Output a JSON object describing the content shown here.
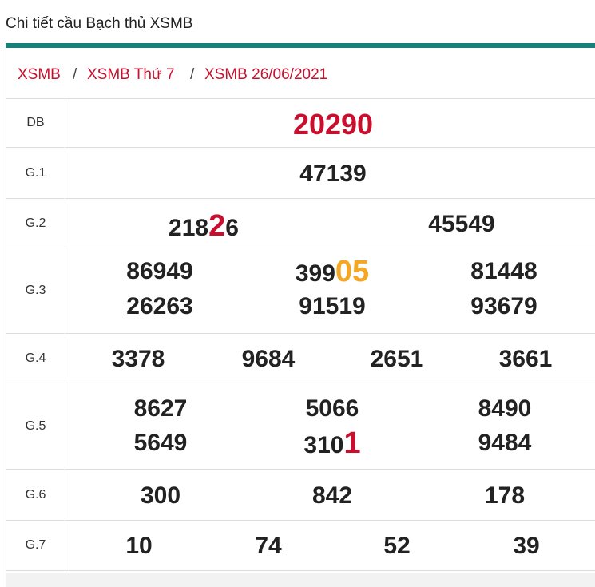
{
  "header": {
    "title": "Chi tiết cầu Bạch thủ XSMB"
  },
  "breadcrumb": {
    "items": [
      "XSMB",
      "XSMB Thứ 7",
      "XSMB 26/06/2021"
    ],
    "separator": "/"
  },
  "colors": {
    "accent_teal": "#1a7f7a",
    "highlight_red": "#c8102e",
    "highlight_orange": "#f5a623"
  },
  "results": {
    "db": {
      "label": "DB",
      "value": "20290"
    },
    "g1": {
      "label": "G.1",
      "value": "47139"
    },
    "g2": {
      "label": "G.2",
      "values": [
        {
          "prefix": "2182",
          "pre": "218",
          "hl": "2",
          "post": "6",
          "highlight": "red"
        },
        {
          "pre": "45549",
          "hl": "",
          "post": ""
        }
      ]
    },
    "g3": {
      "label": "G.3",
      "values": [
        {
          "pre": "86949",
          "hl": "",
          "post": ""
        },
        {
          "pre": "399",
          "hl": "05",
          "post": "",
          "highlight": "orange"
        },
        {
          "pre": "81448",
          "hl": "",
          "post": ""
        },
        {
          "pre": "26263",
          "hl": "",
          "post": ""
        },
        {
          "pre": "91519",
          "hl": "",
          "post": ""
        },
        {
          "pre": "93679",
          "hl": "",
          "post": ""
        }
      ]
    },
    "g4": {
      "label": "G.4",
      "values": [
        "3378",
        "9684",
        "2651",
        "3661"
      ]
    },
    "g5": {
      "label": "G.5",
      "values": [
        {
          "pre": "8627",
          "hl": "",
          "post": ""
        },
        {
          "pre": "5066",
          "hl": "",
          "post": ""
        },
        {
          "pre": "8490",
          "hl": "",
          "post": ""
        },
        {
          "pre": "5649",
          "hl": "",
          "post": ""
        },
        {
          "pre": "310",
          "hl": "1",
          "post": "",
          "highlight": "red"
        },
        {
          "pre": "9484",
          "hl": "",
          "post": ""
        }
      ]
    },
    "g6": {
      "label": "G.6",
      "values": [
        "300",
        "842",
        "178"
      ]
    },
    "g7": {
      "label": "G.7",
      "values": [
        "10",
        "74",
        "52",
        "39"
      ]
    }
  }
}
